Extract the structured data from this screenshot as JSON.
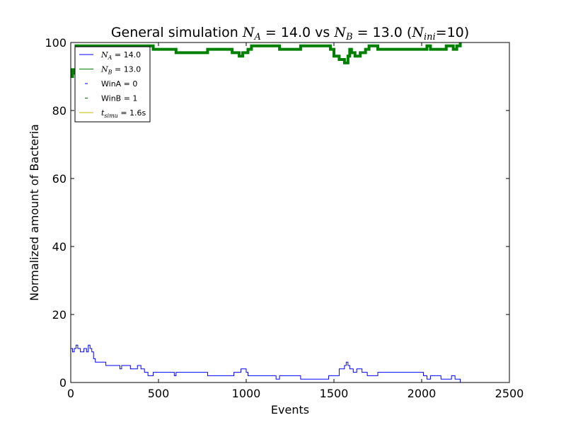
{
  "chart_data": {
    "type": "line",
    "title_parts": {
      "prefix": "General simulation ",
      "na_symbol": "N",
      "na_sub": "A",
      "na_value": " = 14.0 vs ",
      "nb_symbol": "N",
      "nb_sub": "B",
      "nb_value": " = 13.0 (",
      "nini_symbol": "N",
      "nini_sub": "ini",
      "suffix": "=10)"
    },
    "xlabel": "Events",
    "ylabel": "Normalized amount of Bacteria",
    "xlim": [
      0,
      2500
    ],
    "ylim": [
      0,
      100
    ],
    "x_ticks": [
      "0",
      "500",
      "1000",
      "1500",
      "2000",
      "2500"
    ],
    "y_ticks": [
      "0",
      "20",
      "40",
      "60",
      "80",
      "100"
    ],
    "grid": false,
    "legend_position": "top-left",
    "legend": [
      {
        "symbol": "N",
        "sub": "A",
        "text": " = 14.0",
        "style": "line",
        "color": "#0000ff"
      },
      {
        "symbol": "N",
        "sub": "B",
        "text": " = 13.0",
        "style": "line",
        "color": "#008000"
      },
      {
        "symbol": "",
        "sub": "",
        "text": "WinA = 0",
        "style": "dash",
        "color": "#0000ff"
      },
      {
        "symbol": "",
        "sub": "",
        "text": "WinB = 1",
        "style": "dash",
        "color": "#008000"
      },
      {
        "symbol": "t",
        "sub": "simu",
        "text": " = 1.6s",
        "style": "line",
        "color": "#bfbf00"
      }
    ],
    "series": [
      {
        "color": "#0000ff",
        "linewidth": 1,
        "x": [
          0,
          10,
          20,
          30,
          40,
          55,
          75,
          90,
          100,
          110,
          120,
          130,
          140,
          170,
          200,
          260,
          280,
          290,
          340,
          380,
          400,
          420,
          440,
          470,
          590,
          600,
          780,
          930,
          970,
          1000,
          1010,
          1170,
          1190,
          1310,
          1470,
          1530,
          1560,
          1570,
          1580,
          1590,
          1610,
          1630,
          1660,
          1690,
          1750,
          1760,
          2000,
          2010,
          2030,
          2050,
          2070,
          2110,
          2170,
          2190,
          2220,
          2230
        ],
        "y": [
          10,
          9,
          10,
          11,
          10,
          9,
          10,
          9,
          11,
          10,
          9,
          7,
          6,
          6,
          5,
          5,
          4,
          5,
          4,
          5,
          4,
          3,
          2,
          3,
          2,
          3,
          2,
          3,
          4,
          3,
          2,
          1,
          2,
          1,
          2,
          4,
          5,
          6,
          5,
          4,
          3,
          4,
          3,
          2,
          3,
          3,
          3,
          2,
          1,
          2,
          2,
          1,
          2,
          1,
          0,
          0
        ]
      },
      {
        "color": "#008000",
        "linewidth": 4,
        "x": [
          0,
          10,
          20,
          30,
          440,
          470,
          580,
          600,
          780,
          920,
          960,
          980,
          1000,
          1010,
          1030,
          1060,
          1180,
          1190,
          1310,
          1480,
          1500,
          1530,
          1560,
          1580,
          1590,
          1600,
          1620,
          1650,
          1680,
          1700,
          1750,
          2010,
          2030,
          2050,
          2120,
          2140,
          2160,
          2180,
          2200,
          2220
        ],
        "y": [
          90,
          92,
          91,
          99,
          99,
          98,
          98,
          97,
          98,
          97,
          96,
          97,
          97,
          98,
          99,
          99,
          99,
          98,
          99,
          98,
          96,
          95,
          94,
          96,
          98,
          97,
          96,
          97,
          98,
          99,
          98,
          98,
          99,
          98,
          98,
          99,
          99,
          98,
          99,
          100
        ]
      }
    ]
  }
}
